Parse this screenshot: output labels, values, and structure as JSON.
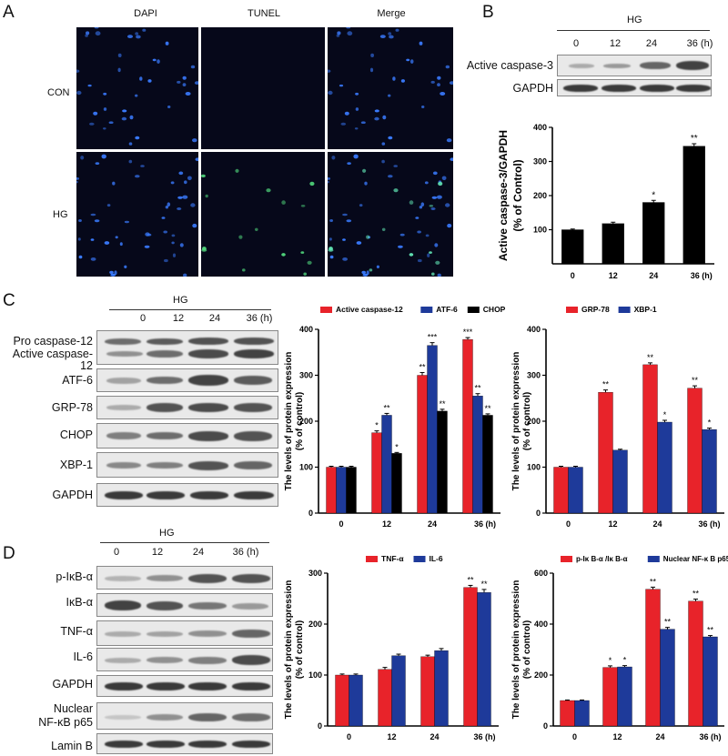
{
  "panelA": {
    "letter": "A",
    "columns": [
      "DAPI",
      "TUNEL",
      "Merge"
    ],
    "rows": [
      "CON",
      "HG"
    ]
  },
  "panelB": {
    "letter": "B",
    "group": "HG",
    "lanes": [
      "0",
      "12",
      "24",
      "36 (h)"
    ],
    "blots": [
      "Active caspase-3",
      "GAPDH"
    ]
  },
  "panelC": {
    "letter": "C",
    "group": "HG",
    "lanes": [
      "0",
      "12",
      "24",
      "36 (h)"
    ],
    "blots": [
      "Pro caspase-12",
      "Active caspase-12",
      "ATF-6",
      "GRP-78",
      "CHOP",
      "XBP-1",
      "GAPDH"
    ]
  },
  "panelD": {
    "letter": "D",
    "group": "HG",
    "lanes": [
      "0",
      "12",
      "24",
      "36 (h)"
    ],
    "blots": [
      "p-IκB-α",
      "IκB-α",
      "TNF-α",
      "IL-6",
      "GAPDH",
      "Nuclear",
      "NF-κB p65",
      "Lamin B"
    ]
  },
  "colors": {
    "red": "#e8232a",
    "blue": "#1e3a9a",
    "black": "#000000"
  },
  "chart_data": [
    {
      "id": "B",
      "type": "bar",
      "categories": [
        "0",
        "12",
        "24",
        "36 (h)"
      ],
      "series": [
        {
          "values": [
            100,
            118,
            180,
            345
          ],
          "errors": [
            2,
            4,
            6,
            7
          ],
          "color": "#000000"
        }
      ],
      "sig": [
        [
          "",
          "",
          "*",
          "**"
        ]
      ],
      "ylabel": "Active caspase-3/GAPDH (% of Control)",
      "ylim": [
        0,
        400
      ],
      "yticks": [
        100,
        200,
        300,
        400
      ]
    },
    {
      "id": "C1",
      "type": "bar",
      "categories": [
        "0",
        "12",
        "24",
        "36 (h)"
      ],
      "series": [
        {
          "name": "Active caspase-12",
          "values": [
            100,
            175,
            300,
            378
          ],
          "errors": [
            2,
            4,
            6,
            4
          ],
          "color": "#e8232a"
        },
        {
          "name": "ATF-6",
          "values": [
            100,
            213,
            365,
            255
          ],
          "errors": [
            2,
            4,
            6,
            5
          ],
          "color": "#1e3a9a"
        },
        {
          "name": "CHOP",
          "values": [
            100,
            130,
            222,
            213
          ],
          "errors": [
            2,
            2,
            4,
            3
          ],
          "color": "#000000"
        }
      ],
      "sig": [
        [
          "",
          "*",
          "**",
          "***"
        ],
        [
          "",
          "**",
          "***",
          "**"
        ],
        [
          "",
          "*",
          "**",
          "**"
        ]
      ],
      "ylabel": "The levels of protein expression (% of control)",
      "ylim": [
        0,
        400
      ],
      "yticks": [
        0,
        100,
        200,
        300,
        400
      ]
    },
    {
      "id": "C2",
      "type": "bar",
      "categories": [
        "0",
        "12",
        "24",
        "36 (h)"
      ],
      "series": [
        {
          "name": "GRP-78",
          "values": [
            100,
            263,
            323,
            272
          ],
          "errors": [
            2,
            5,
            4,
            5
          ],
          "color": "#e8232a"
        },
        {
          "name": "XBP-1",
          "values": [
            100,
            137,
            198,
            182
          ],
          "errors": [
            2,
            2,
            4,
            3
          ],
          "color": "#1e3a9a"
        }
      ],
      "sig": [
        [
          "",
          "**",
          "**",
          "**"
        ],
        [
          "",
          "",
          "*",
          "*"
        ]
      ],
      "ylabel": "The levels of protein expression (% of control)",
      "ylim": [
        0,
        400
      ],
      "yticks": [
        0,
        100,
        200,
        300,
        400
      ]
    },
    {
      "id": "D1",
      "type": "bar",
      "categories": [
        "0",
        "12",
        "24",
        "36 (h)"
      ],
      "series": [
        {
          "name": "TNF-α",
          "values": [
            100,
            111,
            136,
            272
          ],
          "errors": [
            2,
            4,
            3,
            4
          ],
          "color": "#e8232a"
        },
        {
          "name": "IL-6",
          "values": [
            100,
            138,
            148,
            262
          ],
          "errors": [
            2,
            3,
            4,
            6
          ],
          "color": "#1e3a9a"
        }
      ],
      "sig": [
        [
          "",
          "",
          "",
          "**"
        ],
        [
          "",
          "",
          "",
          "**"
        ]
      ],
      "ylabel": "The levels of protein expression (% of control)",
      "ylim": [
        0,
        300
      ],
      "yticks": [
        0,
        100,
        200,
        300
      ]
    },
    {
      "id": "D2",
      "type": "bar",
      "categories": [
        "0",
        "12",
        "24",
        "36 (h)"
      ],
      "series": [
        {
          "name": "p-Iκ B-α /Iκ B-α",
          "values": [
            100,
            230,
            537,
            490
          ],
          "errors": [
            2,
            6,
            8,
            8
          ],
          "color": "#e8232a"
        },
        {
          "name": "Nuclear NF-κ B p65",
          "values": [
            100,
            232,
            380,
            350
          ],
          "errors": [
            2,
            5,
            7,
            5
          ],
          "color": "#1e3a9a"
        }
      ],
      "sig": [
        [
          "",
          "*",
          "**",
          "**"
        ],
        [
          "",
          "*",
          "**",
          "**"
        ]
      ],
      "ylabel": "The levels of protein expression (% of control)",
      "ylim": [
        0,
        600
      ],
      "yticks": [
        0,
        200,
        400,
        600
      ]
    }
  ]
}
